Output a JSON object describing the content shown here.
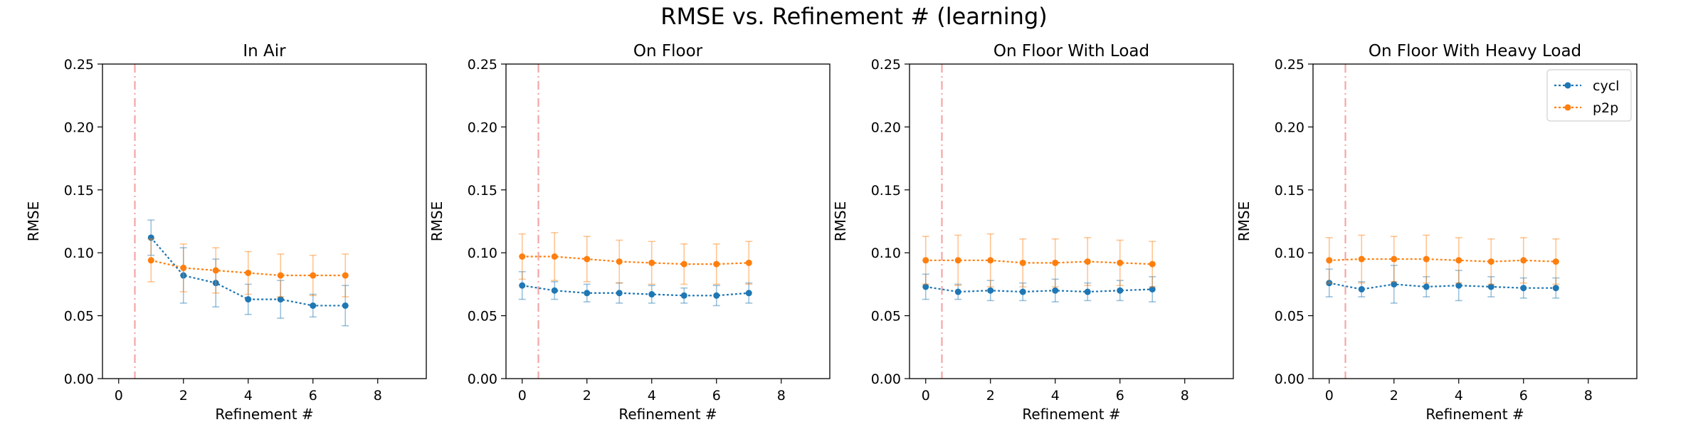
{
  "figure": {
    "title": "RMSE vs. Refinement # (learning)"
  },
  "colors": {
    "cycl": "#1f77b4",
    "p2p": "#ff7f0e",
    "vline": "#f4a6a6"
  },
  "chart_data": [
    {
      "type": "line",
      "title": "In Air",
      "xlabel": "Refinement #",
      "ylabel": "RMSE",
      "xlim": [
        -0.5,
        9.5
      ],
      "ylim": [
        0.0,
        0.25
      ],
      "xticks": [
        "0",
        "2",
        "4",
        "6",
        "8"
      ],
      "yticks": [
        "0.00",
        "0.05",
        "0.10",
        "0.15",
        "0.20",
        "0.25"
      ],
      "vline_x": 0.5,
      "legend": null,
      "series": [
        {
          "name": "cycl",
          "x": [
            1,
            2,
            3,
            4,
            5,
            6,
            7
          ],
          "y": [
            0.112,
            0.082,
            0.076,
            0.063,
            0.063,
            0.058,
            0.058
          ],
          "err": [
            0.014,
            0.022,
            0.019,
            0.012,
            0.015,
            0.009,
            0.016
          ]
        },
        {
          "name": "p2p",
          "x": [
            1,
            2,
            3,
            4,
            5,
            6,
            7
          ],
          "y": [
            0.094,
            0.088,
            0.086,
            0.084,
            0.082,
            0.082,
            0.082
          ],
          "err": [
            0.017,
            0.019,
            0.018,
            0.017,
            0.017,
            0.016,
            0.017
          ]
        }
      ]
    },
    {
      "type": "line",
      "title": "On Floor",
      "xlabel": "Refinement #",
      "ylabel": "RMSE",
      "xlim": [
        -0.5,
        9.5
      ],
      "ylim": [
        0.0,
        0.25
      ],
      "xticks": [
        "0",
        "2",
        "4",
        "6",
        "8"
      ],
      "yticks": [
        "0.00",
        "0.05",
        "0.10",
        "0.15",
        "0.20",
        "0.25"
      ],
      "vline_x": 0.5,
      "legend": null,
      "series": [
        {
          "name": "cycl",
          "x": [
            0,
            1,
            2,
            3,
            4,
            5,
            6,
            7
          ],
          "y": [
            0.074,
            0.07,
            0.068,
            0.068,
            0.067,
            0.066,
            0.066,
            0.068
          ],
          "err": [
            0.011,
            0.007,
            0.007,
            0.008,
            0.007,
            0.006,
            0.008,
            0.008
          ]
        },
        {
          "name": "p2p",
          "x": [
            0,
            1,
            2,
            3,
            4,
            5,
            6,
            7
          ],
          "y": [
            0.097,
            0.097,
            0.095,
            0.093,
            0.092,
            0.091,
            0.091,
            0.092
          ],
          "err": [
            0.018,
            0.019,
            0.018,
            0.017,
            0.017,
            0.016,
            0.016,
            0.017
          ]
        }
      ]
    },
    {
      "type": "line",
      "title": "On Floor With Load",
      "xlabel": "Refinement #",
      "ylabel": "RMSE",
      "xlim": [
        -0.5,
        9.5
      ],
      "ylim": [
        0.0,
        0.25
      ],
      "xticks": [
        "0",
        "2",
        "4",
        "6",
        "8"
      ],
      "yticks": [
        "0.00",
        "0.05",
        "0.10",
        "0.15",
        "0.20",
        "0.25"
      ],
      "vline_x": 0.5,
      "legend": null,
      "series": [
        {
          "name": "cycl",
          "x": [
            0,
            1,
            2,
            3,
            4,
            5,
            6,
            7
          ],
          "y": [
            0.073,
            0.069,
            0.07,
            0.069,
            0.07,
            0.069,
            0.07,
            0.071
          ],
          "err": [
            0.01,
            0.006,
            0.008,
            0.007,
            0.009,
            0.007,
            0.008,
            0.01
          ]
        },
        {
          "name": "p2p",
          "x": [
            0,
            1,
            2,
            3,
            4,
            5,
            6,
            7
          ],
          "y": [
            0.094,
            0.094,
            0.094,
            0.092,
            0.092,
            0.093,
            0.092,
            0.091
          ],
          "err": [
            0.019,
            0.02,
            0.021,
            0.019,
            0.019,
            0.019,
            0.018,
            0.018
          ]
        }
      ]
    },
    {
      "type": "line",
      "title": "On Floor With Heavy Load",
      "xlabel": "Refinement #",
      "ylabel": "RMSE",
      "xlim": [
        -0.5,
        9.5
      ],
      "ylim": [
        0.0,
        0.25
      ],
      "xticks": [
        "0",
        "2",
        "4",
        "6",
        "8"
      ],
      "yticks": [
        "0.00",
        "0.05",
        "0.10",
        "0.15",
        "0.20",
        "0.25"
      ],
      "vline_x": 0.5,
      "legend": "top-right",
      "series": [
        {
          "name": "cycl",
          "x": [
            0,
            1,
            2,
            3,
            4,
            5,
            6,
            7
          ],
          "y": [
            0.076,
            0.071,
            0.075,
            0.073,
            0.074,
            0.073,
            0.072,
            0.072
          ],
          "err": [
            0.011,
            0.006,
            0.015,
            0.008,
            0.012,
            0.008,
            0.008,
            0.008
          ]
        },
        {
          "name": "p2p",
          "x": [
            0,
            1,
            2,
            3,
            4,
            5,
            6,
            7
          ],
          "y": [
            0.094,
            0.095,
            0.095,
            0.095,
            0.094,
            0.093,
            0.094,
            0.093
          ],
          "err": [
            0.018,
            0.019,
            0.018,
            0.019,
            0.018,
            0.018,
            0.018,
            0.018
          ]
        }
      ]
    }
  ]
}
